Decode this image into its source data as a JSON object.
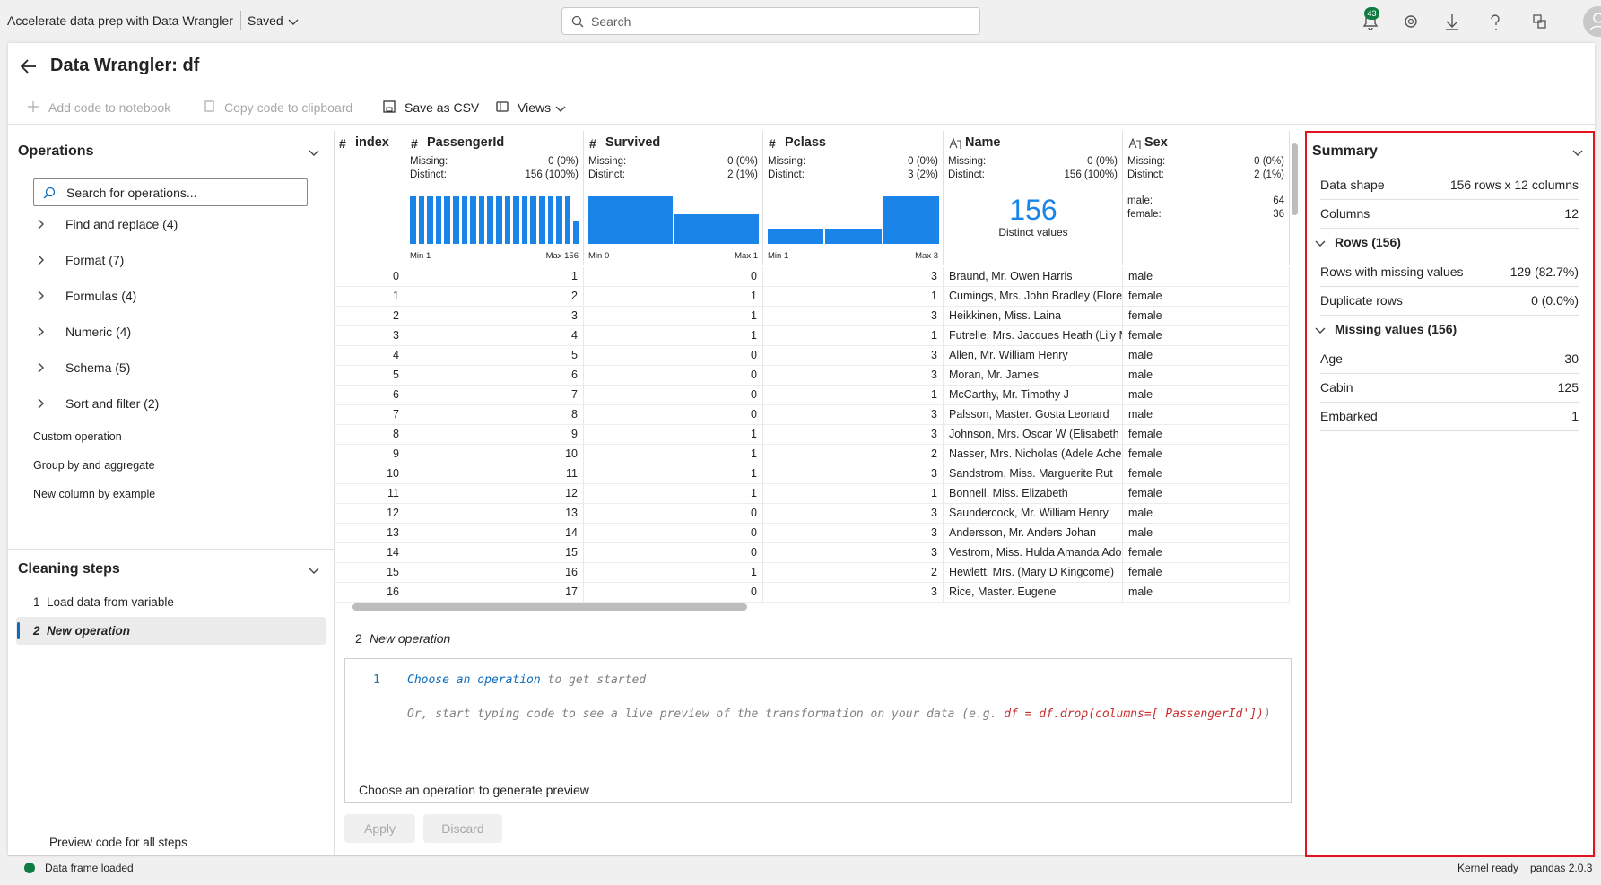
{
  "topbar": {
    "title": "Accelerate data prep with Data Wrangler",
    "status": "Saved",
    "search": "Search",
    "notifications": "43"
  },
  "header": {
    "title": "Data Wrangler: df"
  },
  "toolbar": [
    "Add code to notebook",
    "Copy code to clipboard",
    "Save as CSV",
    "Views"
  ],
  "operations": {
    "title": "Operations",
    "search": "Search for operations...",
    "groups": [
      "Find and replace (4)",
      "Format (7)",
      "Formulas (4)",
      "Numeric (4)",
      "Schema (5)",
      "Sort and filter (2)"
    ],
    "items": [
      "Custom operation",
      "Group by and aggregate",
      "New column by example"
    ]
  },
  "cleaning_steps": {
    "title": "Cleaning steps",
    "steps": [
      {
        "number": "1",
        "label": "Load data from variable"
      },
      {
        "number": "2",
        "label": "New operation"
      }
    ],
    "preview": "Preview code for all steps"
  },
  "grid": {
    "labels": {
      "missing": "Missing:",
      "distinct": "Distinct:"
    },
    "columns": [
      {
        "name": "index",
        "icon": "#"
      },
      {
        "name": "PassengerId",
        "icon": "#",
        "missing": "0 (0%)",
        "distinct": "156 (100%)",
        "min": "Min 1",
        "max": "Max 156",
        "hist": [
          8,
          8,
          8,
          8,
          8,
          8,
          8,
          8,
          8,
          8,
          8,
          8,
          8,
          8,
          8,
          8,
          8,
          8,
          8,
          4
        ]
      },
      {
        "name": "Survived",
        "icon": "#",
        "missing": "0 (0%)",
        "distinct": "2 (1%)",
        "min": "Min 0",
        "max": "Max 1",
        "hist": [
          96,
          60
        ]
      },
      {
        "name": "Pclass",
        "icon": "#",
        "missing": "0 (0%)",
        "distinct": "3 (2%)",
        "min": "Min 1",
        "max": "Max 3",
        "hist": [
          30,
          30,
          96
        ]
      },
      {
        "name": "Name",
        "missing": "0 (0%)",
        "distinct": "156 (100%)",
        "big": "156",
        "big_label": "Distinct values"
      },
      {
        "name": "Sex",
        "missing": "0 (0%)",
        "distinct": "2 (1%)",
        "cats": [
          {
            "label": "male:",
            "value": "64"
          },
          {
            "label": "female:",
            "value": "36"
          }
        ]
      }
    ],
    "rows": [
      [
        0,
        1,
        0,
        3,
        "Braund, Mr. Owen Harris",
        "male"
      ],
      [
        1,
        2,
        1,
        1,
        "Cumings, Mrs. John Bradley (Florenc",
        "female"
      ],
      [
        2,
        3,
        1,
        3,
        "Heikkinen, Miss. Laina",
        "female"
      ],
      [
        3,
        4,
        1,
        1,
        "Futrelle, Mrs. Jacques Heath (Lily Ma",
        "female"
      ],
      [
        4,
        5,
        0,
        3,
        "Allen, Mr. William Henry",
        "male"
      ],
      [
        5,
        6,
        0,
        3,
        "Moran, Mr. James",
        "male"
      ],
      [
        6,
        7,
        0,
        1,
        "McCarthy, Mr. Timothy J",
        "male"
      ],
      [
        7,
        8,
        0,
        3,
        "Palsson, Master. Gosta Leonard",
        "male"
      ],
      [
        8,
        9,
        1,
        3,
        "Johnson, Mrs. Oscar W (Elisabeth Vil",
        "female"
      ],
      [
        9,
        10,
        1,
        2,
        "Nasser, Mrs. Nicholas (Adele Achem",
        "female"
      ],
      [
        10,
        11,
        1,
        3,
        "Sandstrom, Miss. Marguerite Rut",
        "female"
      ],
      [
        11,
        12,
        1,
        1,
        "Bonnell, Miss. Elizabeth",
        "female"
      ],
      [
        12,
        13,
        0,
        3,
        "Saundercock, Mr. William Henry",
        "male"
      ],
      [
        13,
        14,
        0,
        3,
        "Andersson, Mr. Anders Johan",
        "male"
      ],
      [
        14,
        15,
        0,
        3,
        "Vestrom, Miss. Hulda Amanda Adolf",
        "female"
      ],
      [
        15,
        16,
        1,
        2,
        "Hewlett, Mrs. (Mary D Kingcome)",
        "female"
      ],
      [
        16,
        17,
        0,
        3,
        "Rice, Master. Eugene",
        "male"
      ]
    ]
  },
  "editor": {
    "step_number": "2",
    "step_label": "New operation",
    "line_numbers": [
      "1"
    ],
    "link": "Choose an operation",
    "line1_rest": " to get started",
    "line2_start": "Or, start typing code to see a live preview of the transformation on your data (e.g. ",
    "line2_code": "df = df.drop(columns=['PassengerId'])",
    "line2_end": ")",
    "footer": "Choose an operation to generate preview",
    "buttons": [
      "Apply",
      "Discard"
    ]
  },
  "summary": {
    "title": "Summary",
    "rows": [
      [
        "Data shape",
        "156 rows x 12 columns"
      ],
      [
        "Columns",
        "12"
      ]
    ],
    "sections": [
      {
        "title": "Rows (156)",
        "items": [
          [
            "Rows with missing values",
            "129 (82.7%)"
          ],
          [
            "Duplicate rows",
            "0 (0.0%)"
          ]
        ]
      },
      {
        "title": "Missing values (156)",
        "items": [
          [
            "Age",
            "30"
          ],
          [
            "Cabin",
            "125"
          ],
          [
            "Embarked",
            "1"
          ]
        ]
      }
    ]
  },
  "status": {
    "left": "Data frame loaded",
    "kernel": "Kernel ready",
    "version": "pandas 2.0.3"
  }
}
